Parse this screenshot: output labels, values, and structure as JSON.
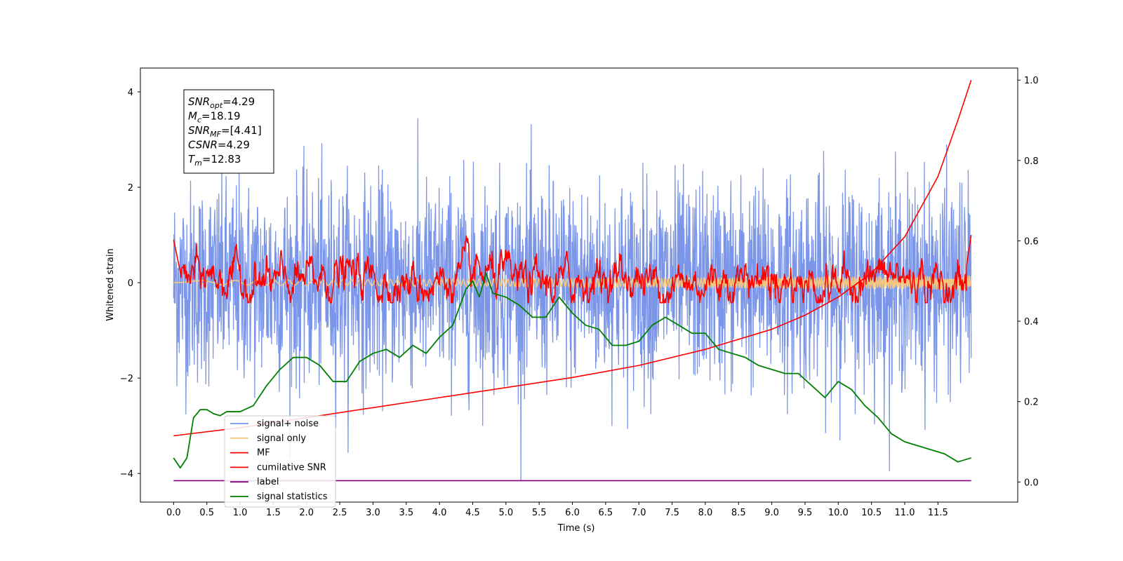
{
  "chart_data": {
    "type": "line",
    "xlabel": "Time (s)",
    "ylabel": "Whitened strain",
    "xlim": [
      -0.5,
      12.7
    ],
    "ylim": [
      -4.6,
      4.5
    ],
    "y2lim": [
      -0.05,
      1.03
    ],
    "x_ticks": [
      "0.0",
      "0.5",
      "1.0",
      "1.5",
      "2.0",
      "2.5",
      "3.0",
      "3.5",
      "4.0",
      "4.5",
      "5.0",
      "5.5",
      "6.0",
      "6.5",
      "7.0",
      "7.5",
      "8.0",
      "8.5",
      "9.0",
      "9.5",
      "10.0",
      "10.5",
      "11.0",
      "11.5"
    ],
    "x_tick_values": [
      0,
      0.5,
      1,
      1.5,
      2,
      2.5,
      3,
      3.5,
      4,
      4.5,
      5,
      5.5,
      6,
      6.5,
      7,
      7.5,
      8,
      8.5,
      9,
      9.5,
      10,
      10.5,
      11,
      11.5
    ],
    "y_ticks": [
      "−4",
      "−2",
      "0",
      "2",
      "4"
    ],
    "y_tick_values": [
      -4,
      -2,
      0,
      2,
      4
    ],
    "y2_ticks": [
      "0.0",
      "0.2",
      "0.4",
      "0.6",
      "0.8",
      "1.0"
    ],
    "y2_tick_values": [
      0,
      0.2,
      0.4,
      0.6,
      0.8,
      1.0
    ],
    "stats": [
      {
        "symbol": "SNR",
        "sub": "opt",
        "value": "=4.29"
      },
      {
        "symbol": "M",
        "sub": "c",
        "value": "=18.19"
      },
      {
        "symbol": "SNR",
        "sub": "MF",
        "value": "=[4.41]"
      },
      {
        "symbol": "CSNR",
        "sub": "",
        "value": "=4.29"
      },
      {
        "symbol": "T",
        "sub": "m",
        "value": "=12.83"
      }
    ],
    "legend": [
      {
        "name": "signal+ noise",
        "color": "#7b96e8"
      },
      {
        "name": "signal only",
        "color": "#f5c77e"
      },
      {
        "name": "MF",
        "color": "#ff0000"
      },
      {
        "name": "cumilative SNR",
        "color": "#ff0000"
      },
      {
        "name": "label",
        "color": "#800080"
      },
      {
        "name": "signal statistics",
        "color": "#008000"
      }
    ],
    "legend_placement": "lower-left",
    "series": [
      {
        "name": "signal+ noise",
        "axis": "left",
        "color": "#7b96e8",
        "x_range": [
          0,
          12.0
        ],
        "amplitude_range": [
          -4.15,
          4.05
        ],
        "noise_std": 1.0
      },
      {
        "name": "signal only",
        "axis": "left",
        "color": "#f5c77e",
        "x_range": [
          0,
          12.0
        ],
        "amplitude_range": [
          -0.15,
          0.15
        ]
      },
      {
        "name": "MF",
        "axis": "left",
        "color": "#ff0000",
        "x_range": [
          0,
          12.0
        ],
        "amplitude_range": [
          -0.4,
          1.0
        ]
      },
      {
        "name": "cumilative SNR",
        "axis": "right",
        "color": "#ff0000",
        "x": [
          0,
          1,
          2,
          3,
          4,
          5,
          6,
          7,
          8,
          9,
          9.5,
          10,
          10.5,
          11,
          11.5,
          11.8,
          12.0
        ],
        "y": [
          0.115,
          0.135,
          0.16,
          0.185,
          0.21,
          0.235,
          0.26,
          0.29,
          0.33,
          0.38,
          0.415,
          0.46,
          0.52,
          0.61,
          0.76,
          0.9,
          1.0
        ]
      },
      {
        "name": "label",
        "axis": "left",
        "color": "#800080",
        "x": [
          0,
          12.0
        ],
        "y": [
          -4.15,
          -4.15
        ]
      },
      {
        "name": "signal statistics",
        "axis": "right",
        "color": "#008000",
        "x": [
          0,
          0.1,
          0.2,
          0.3,
          0.4,
          0.5,
          0.6,
          0.7,
          0.8,
          0.9,
          1.0,
          1.2,
          1.4,
          1.6,
          1.8,
          2.0,
          2.2,
          2.4,
          2.6,
          2.8,
          3.0,
          3.2,
          3.4,
          3.6,
          3.8,
          4.0,
          4.2,
          4.4,
          4.5,
          4.6,
          4.7,
          4.8,
          5.0,
          5.2,
          5.4,
          5.6,
          5.8,
          6.0,
          6.2,
          6.4,
          6.6,
          6.8,
          7.0,
          7.2,
          7.4,
          7.6,
          7.8,
          8.0,
          8.2,
          8.4,
          8.6,
          8.8,
          9.0,
          9.2,
          9.4,
          9.6,
          9.8,
          10.0,
          10.2,
          10.4,
          10.6,
          10.8,
          11.0,
          11.2,
          11.4,
          11.6,
          11.8,
          12.0
        ],
        "y": [
          0.06,
          0.035,
          0.06,
          0.16,
          0.18,
          0.18,
          0.17,
          0.165,
          0.175,
          0.175,
          0.175,
          0.19,
          0.24,
          0.28,
          0.31,
          0.31,
          0.29,
          0.25,
          0.25,
          0.3,
          0.32,
          0.33,
          0.31,
          0.34,
          0.32,
          0.36,
          0.39,
          0.48,
          0.5,
          0.46,
          0.52,
          0.47,
          0.46,
          0.44,
          0.41,
          0.41,
          0.46,
          0.42,
          0.39,
          0.38,
          0.34,
          0.34,
          0.35,
          0.39,
          0.41,
          0.39,
          0.37,
          0.37,
          0.33,
          0.32,
          0.31,
          0.29,
          0.28,
          0.27,
          0.27,
          0.24,
          0.21,
          0.25,
          0.23,
          0.19,
          0.16,
          0.12,
          0.1,
          0.09,
          0.08,
          0.07,
          0.05,
          0.06
        ]
      }
    ]
  }
}
